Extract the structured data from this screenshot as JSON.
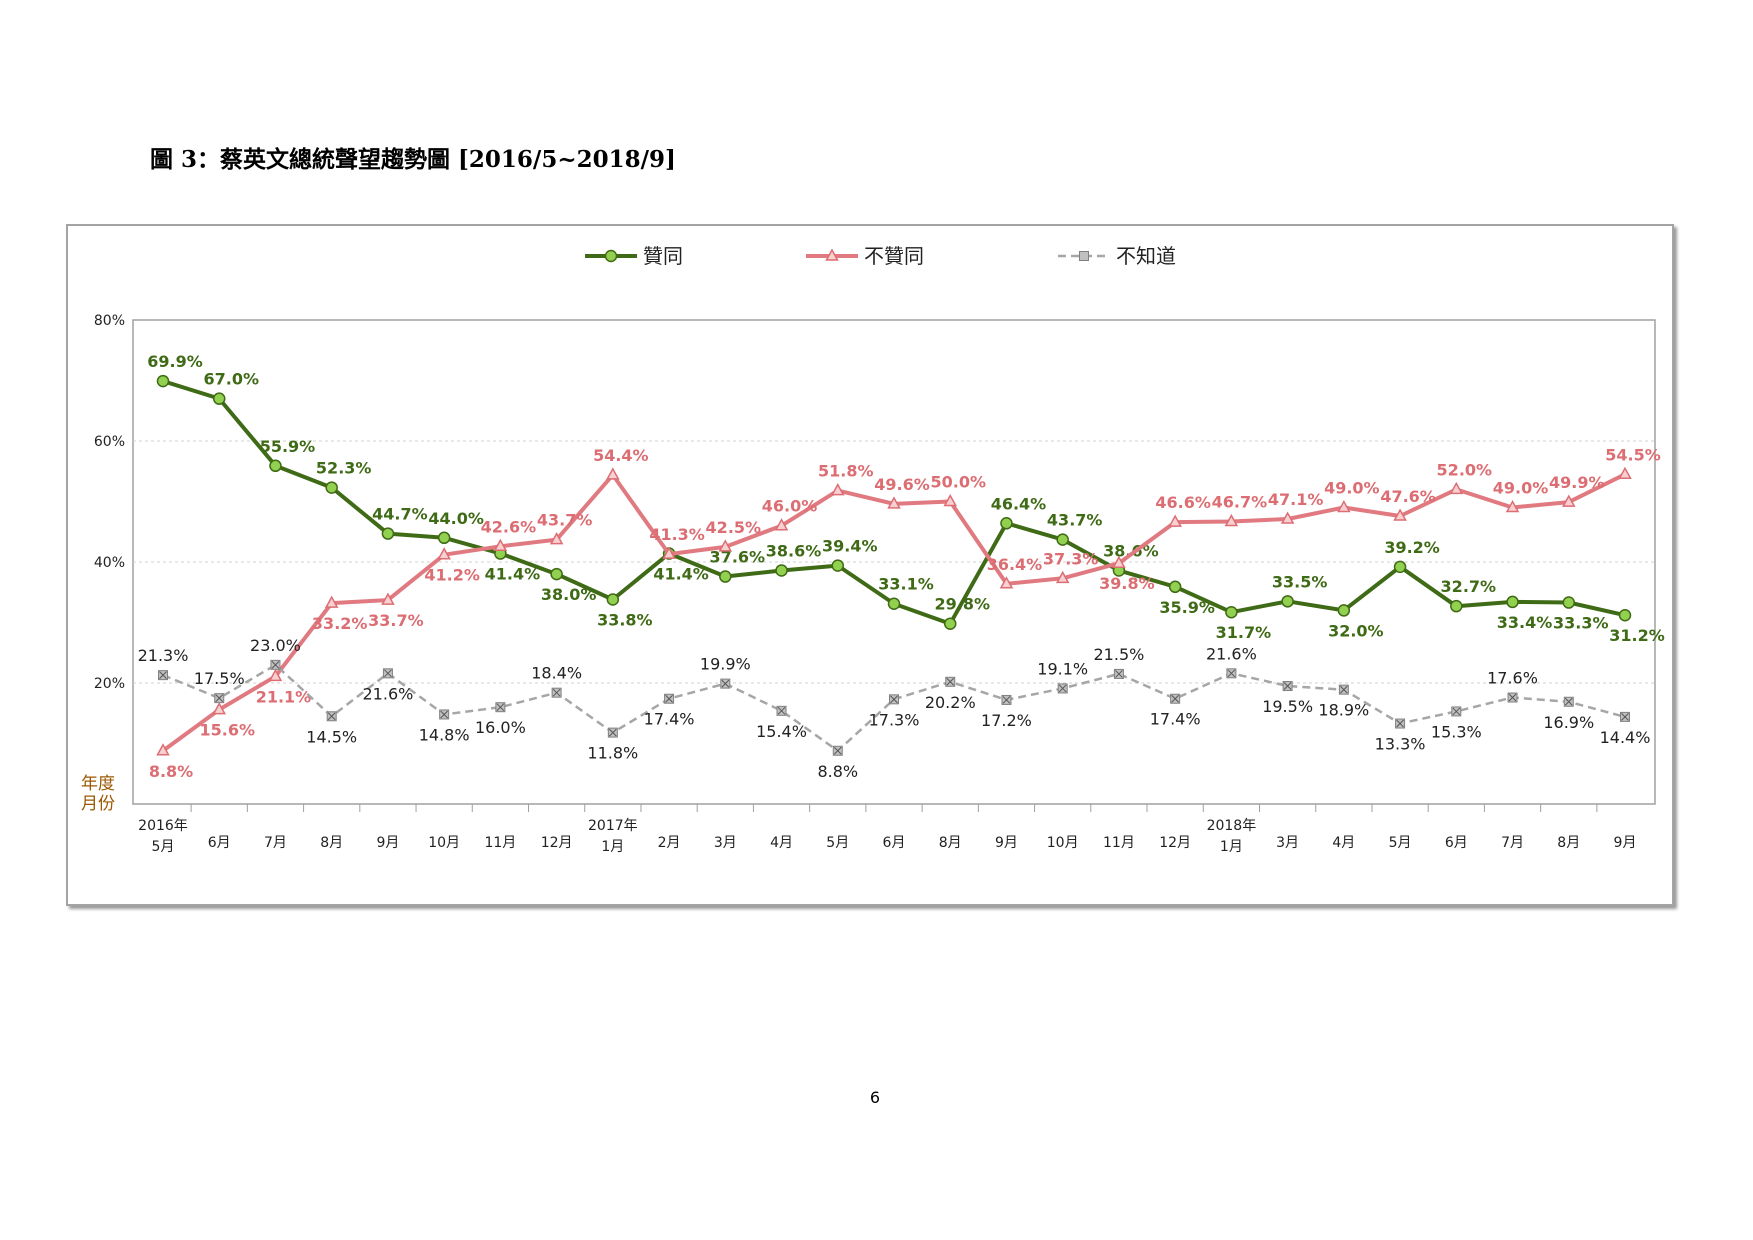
{
  "page": {
    "title": "圖 3：蔡英文總統聲望趨勢圖 [2016/5~2018/9]",
    "page_number": "6"
  },
  "chart_data": {
    "type": "line",
    "title": "",
    "xlabel_top": "年度",
    "xlabel_bottom": "月份",
    "ylim": [
      0,
      80
    ],
    "yticks": [
      "80%",
      "60%",
      "40%",
      "20%"
    ],
    "ytick_values": [
      80,
      60,
      40,
      20
    ],
    "grid": true,
    "legend_position": "top-center",
    "categories": [
      {
        "year": "2016年",
        "month": "5月"
      },
      {
        "year": "",
        "month": "6月"
      },
      {
        "year": "",
        "month": "7月"
      },
      {
        "year": "",
        "month": "8月"
      },
      {
        "year": "",
        "month": "9月"
      },
      {
        "year": "",
        "month": "10月"
      },
      {
        "year": "",
        "month": "11月"
      },
      {
        "year": "",
        "month": "12月"
      },
      {
        "year": "2017年",
        "month": "1月"
      },
      {
        "year": "",
        "month": "2月"
      },
      {
        "year": "",
        "month": "3月"
      },
      {
        "year": "",
        "month": "4月"
      },
      {
        "year": "",
        "month": "5月"
      },
      {
        "year": "",
        "month": "6月"
      },
      {
        "year": "",
        "month": "8月"
      },
      {
        "year": "",
        "month": "9月"
      },
      {
        "year": "",
        "month": "10月"
      },
      {
        "year": "",
        "month": "11月"
      },
      {
        "year": "",
        "month": "12月"
      },
      {
        "year": "2018年",
        "month": "1月"
      },
      {
        "year": "",
        "month": "3月"
      },
      {
        "year": "",
        "month": "4月"
      },
      {
        "year": "",
        "month": "5月"
      },
      {
        "year": "",
        "month": "6月"
      },
      {
        "year": "",
        "month": "7月"
      },
      {
        "year": "",
        "month": "8月"
      },
      {
        "year": "",
        "month": "9月"
      }
    ],
    "series": [
      {
        "name": "贊同",
        "color": "#3f6a16",
        "marker": "circle",
        "marker_fill": "#92d050",
        "label_color": "#3f6a16",
        "values": [
          69.9,
          67.0,
          55.9,
          52.3,
          44.7,
          44.0,
          41.4,
          38.0,
          33.8,
          41.4,
          37.6,
          38.6,
          39.4,
          33.1,
          29.8,
          46.4,
          43.7,
          38.6,
          35.9,
          31.7,
          33.5,
          32.0,
          39.2,
          32.7,
          33.4,
          33.3,
          31.2
        ],
        "labels": [
          "69.9%",
          "67.0%",
          "55.9%",
          "52.3%",
          "44.7%",
          "44.0%",
          "41.4%",
          "38.0%",
          "33.8%",
          "41.4%",
          "37.6%",
          "38.6%",
          "39.4%",
          "33.1%",
          "29.8%",
          "46.4%",
          "43.7%",
          "38.6%",
          "35.9%",
          "31.7%",
          "33.5%",
          "32.0%",
          "39.2%",
          "32.7%",
          "33.4%",
          "33.3%",
          "31.2%"
        ]
      },
      {
        "name": "不贊同",
        "color": "#e07a80",
        "marker": "triangle",
        "marker_fill": "#f8d0d2",
        "label_color": "#dc6d73",
        "values": [
          8.8,
          15.6,
          21.1,
          33.2,
          33.7,
          41.2,
          42.6,
          43.7,
          54.4,
          41.3,
          42.5,
          46.0,
          51.8,
          49.6,
          50.0,
          36.4,
          37.3,
          39.8,
          46.6,
          46.7,
          47.1,
          49.0,
          47.6,
          52.0,
          49.0,
          49.9,
          54.5
        ],
        "labels": [
          "8.8%",
          "15.6%",
          "21.1%",
          "33.2%",
          "33.7%",
          "41.2%",
          "42.6%",
          "43.7%",
          "54.4%",
          "41.3%",
          "42.5%",
          "46.0%",
          "51.8%",
          "49.6%",
          "50.0%",
          "36.4%",
          "37.3%",
          "39.8%",
          "46.6%",
          "46.7%",
          "47.1%",
          "49.0%",
          "47.6%",
          "52.0%",
          "49.0%",
          "49.9%",
          "54.5%"
        ]
      },
      {
        "name": "不知道",
        "color": "#a6a6a6",
        "marker": "square-x",
        "marker_fill": "#c0c0c0",
        "label_color": "#222222",
        "dashed": true,
        "values": [
          21.3,
          17.5,
          23.0,
          14.5,
          21.6,
          14.8,
          16.0,
          18.4,
          11.8,
          17.4,
          19.9,
          15.4,
          8.8,
          17.3,
          20.2,
          17.2,
          19.1,
          21.5,
          17.4,
          21.6,
          19.5,
          18.9,
          13.3,
          15.3,
          17.6,
          16.9,
          14.4
        ],
        "labels": [
          "21.3%",
          "17.5%",
          "23.0%",
          "14.5%",
          "21.6%",
          "14.8%",
          "16.0%",
          "18.4%",
          "11.8%",
          "17.4%",
          "19.9%",
          "15.4%",
          "8.8%",
          "17.3%",
          "20.2%",
          "17.2%",
          "19.1%",
          "21.5%",
          "17.4%",
          "21.6%",
          "19.5%",
          "18.9%",
          "13.3%",
          "15.3%",
          "17.6%",
          "16.9%",
          "14.4%"
        ]
      }
    ]
  }
}
